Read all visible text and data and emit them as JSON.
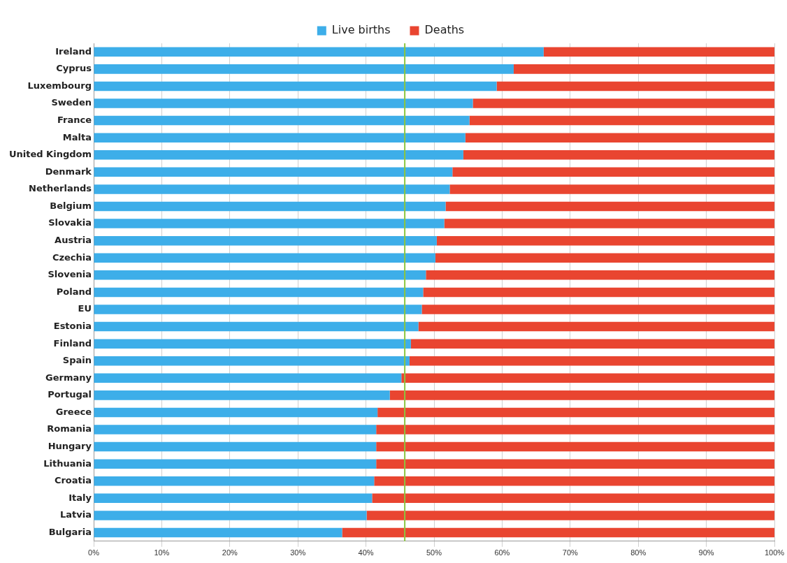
{
  "chart_data": {
    "type": "bar",
    "orientation": "horizontal",
    "stacked": true,
    "categories": [
      "Ireland",
      "Cyprus",
      "Luxembourg",
      "Sweden",
      "France",
      "Malta",
      "United Kingdom",
      "Denmark",
      "Netherlands",
      "Belgium",
      "Slovakia",
      "Austria",
      "Czechia",
      "Slovenia",
      "Poland",
      "EU",
      "Estonia",
      "Finland",
      "Spain",
      "Germany",
      "Portugal",
      "Greece",
      "Romania",
      "Hungary",
      "Lithuania",
      "Croatia",
      "Italy",
      "Latvia",
      "Bulgaria"
    ],
    "series": [
      {
        "name": "Live births",
        "color": "#3daee9",
        "values": [
          66.1,
          61.7,
          59.2,
          55.7,
          55.2,
          54.6,
          54.3,
          52.7,
          52.3,
          51.7,
          51.5,
          50.4,
          50.2,
          48.8,
          48.4,
          48.2,
          47.7,
          46.6,
          46.4,
          45.2,
          43.5,
          41.7,
          41.5,
          41.5,
          41.5,
          41.2,
          40.9,
          40.1,
          36.5
        ]
      },
      {
        "name": "Deaths",
        "color": "#e94530",
        "values": [
          33.9,
          38.3,
          40.8,
          44.3,
          44.8,
          45.4,
          45.7,
          47.3,
          47.7,
          48.3,
          48.5,
          49.6,
          49.8,
          51.2,
          51.6,
          51.8,
          52.3,
          53.4,
          53.6,
          54.8,
          56.5,
          58.3,
          58.5,
          58.5,
          58.5,
          58.8,
          59.1,
          59.9,
          63.5
        ]
      }
    ],
    "xlim": [
      0,
      100
    ],
    "xticks": [
      {
        "value": 0,
        "label": "0%"
      },
      {
        "value": 10,
        "label": "10%"
      },
      {
        "value": 20,
        "label": "20%"
      },
      {
        "value": 30,
        "label": "30%"
      },
      {
        "value": 40,
        "label": "40%"
      },
      {
        "value": 50,
        "label": "50%"
      },
      {
        "value": 60,
        "label": "60%"
      },
      {
        "value": 70,
        "label": "70%"
      },
      {
        "value": 80,
        "label": "80%"
      },
      {
        "value": 90,
        "label": "90%"
      },
      {
        "value": 100,
        "label": "100%"
      }
    ],
    "ref_lines": [
      {
        "axis": "x",
        "value": 45.7,
        "color": "#8cc63f"
      }
    ],
    "grid": "x",
    "legend": "top"
  }
}
